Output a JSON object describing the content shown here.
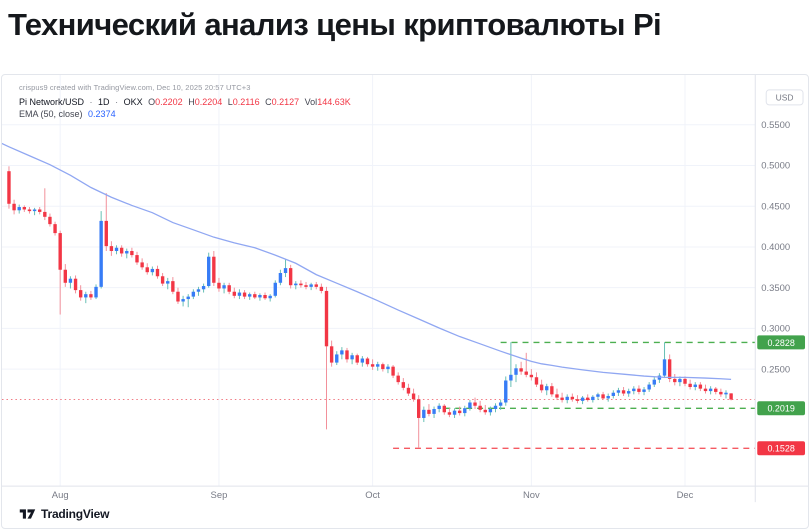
{
  "page": {
    "title": "Технический анализ цены криптовалюты Pi"
  },
  "chart": {
    "attribution": "crispus9 created with TradingView.com, Dec 10, 2025 20:57 UTC+3",
    "legend": {
      "symbol": "Pi Network/USD",
      "separator": "·",
      "interval": "1D",
      "exchange": "OKX",
      "o_label": "O",
      "o": "0.2202",
      "h_label": "H",
      "h": "0.2204",
      "l_label": "L",
      "l": "0.2116",
      "c_label": "C",
      "c": "0.2127",
      "vol_label": "Vol",
      "vol": "144.63K",
      "ema_label": "EMA (50, close)",
      "ema_value": "0.2374"
    },
    "colors": {
      "up_body": "#377cf6",
      "up_wick": "#67bfb4",
      "down_body": "#f23645",
      "down_wick": "#f2909a",
      "ema_line": "#90a7f2",
      "grid": "#f0f3fa",
      "axis_border": "#e0e3eb",
      "axis_text": "#787b86",
      "level_green": "#4caf50",
      "level_red": "#f55a61",
      "badge_green": "#42a24c",
      "badge_red": "#f23645",
      "price_dotted": "#f07b84",
      "badge_text": "#ffffff"
    }
  },
  "footer": {
    "brand": "TradingView"
  },
  "chart_data": {
    "type": "candlestick",
    "title": "Pi Network/USD · 1D · OKX",
    "y_axis": {
      "label": "USD",
      "range": [
        0.145,
        0.565
      ],
      "ticks": [
        {
          "label": "0.5500",
          "value": 0.55
        },
        {
          "label": "0.5000",
          "value": 0.5
        },
        {
          "label": "0.4500",
          "value": 0.45
        },
        {
          "label": "0.4000",
          "value": 0.4
        },
        {
          "label": "0.3500",
          "value": 0.35
        },
        {
          "label": "0.3000",
          "value": 0.3
        },
        {
          "label": "0.2500",
          "value": 0.25
        }
      ]
    },
    "month_ticks": [
      {
        "label": "Aug",
        "index": 10
      },
      {
        "label": "Sep",
        "index": 41
      },
      {
        "label": "Oct",
        "index": 71
      },
      {
        "label": "Nov",
        "index": 102
      },
      {
        "label": "Dec",
        "index": 132
      }
    ],
    "levels": [
      {
        "label": "0.2828",
        "value": 0.2828,
        "role": "resistance",
        "style": "dashed",
        "color": "green",
        "start_index": 96,
        "badge": true
      },
      {
        "label": "0.2019",
        "value": 0.2019,
        "role": "support",
        "style": "dashed",
        "color": "green",
        "start_index": 85,
        "badge": true
      },
      {
        "label": "0.1528",
        "value": 0.1528,
        "role": "support",
        "style": "dashed",
        "color": "red",
        "start_index": 75,
        "badge": true
      },
      {
        "label": "0.2127",
        "value": 0.2127,
        "role": "last-price",
        "style": "dotted",
        "color": "red",
        "start_index": -1.4,
        "badge": false
      }
    ],
    "ema": {
      "name": "EMA (50, close)",
      "last_value": 0.2374,
      "points": [
        [
          -1.4,
          0.527
        ],
        [
          0,
          0.523
        ],
        [
          4,
          0.512
        ],
        [
          8,
          0.501
        ],
        [
          12,
          0.488
        ],
        [
          16,
          0.473
        ],
        [
          20,
          0.461
        ],
        [
          24,
          0.451
        ],
        [
          28,
          0.442
        ],
        [
          32,
          0.43
        ],
        [
          36,
          0.421
        ],
        [
          40,
          0.412
        ],
        [
          44,
          0.405
        ],
        [
          48,
          0.399
        ],
        [
          52,
          0.39
        ],
        [
          56,
          0.38
        ],
        [
          60,
          0.366
        ],
        [
          64,
          0.3555
        ],
        [
          68,
          0.345
        ],
        [
          72,
          0.334
        ],
        [
          76,
          0.3225
        ],
        [
          80,
          0.3115
        ],
        [
          84,
          0.3005
        ],
        [
          88,
          0.29
        ],
        [
          92,
          0.281
        ],
        [
          96,
          0.272
        ],
        [
          100,
          0.2635
        ],
        [
          102,
          0.2595
        ],
        [
          104,
          0.2565
        ],
        [
          106,
          0.2545
        ],
        [
          108,
          0.2525
        ],
        [
          112,
          0.249
        ],
        [
          116,
          0.246
        ],
        [
          120,
          0.2438
        ],
        [
          124,
          0.2415
        ],
        [
          128,
          0.2398
        ],
        [
          132,
          0.2398
        ],
        [
          136,
          0.239
        ],
        [
          139,
          0.2382
        ],
        [
          141,
          0.2374
        ]
      ]
    },
    "candles": [
      [
        0.493,
        0.499,
        0.447,
        0.453
      ],
      [
        0.453,
        0.458,
        0.44,
        0.445
      ],
      [
        0.445,
        0.452,
        0.441,
        0.449
      ],
      [
        0.449,
        0.451,
        0.443,
        0.446
      ],
      [
        0.446,
        0.449,
        0.441,
        0.444
      ],
      [
        0.444,
        0.448,
        0.439,
        0.446
      ],
      [
        0.446,
        0.449,
        0.44,
        0.443
      ],
      [
        0.443,
        0.472,
        0.433,
        0.437
      ],
      [
        0.437,
        0.441,
        0.425,
        0.428
      ],
      [
        0.428,
        0.431,
        0.414,
        0.417
      ],
      [
        0.417,
        0.42,
        0.317,
        0.372
      ],
      [
        0.372,
        0.379,
        0.351,
        0.356
      ],
      [
        0.356,
        0.364,
        0.349,
        0.361
      ],
      [
        0.361,
        0.365,
        0.343,
        0.347
      ],
      [
        0.347,
        0.353,
        0.334,
        0.338
      ],
      [
        0.338,
        0.345,
        0.331,
        0.342
      ],
      [
        0.342,
        0.346,
        0.335,
        0.338
      ],
      [
        0.338,
        0.354,
        0.336,
        0.351
      ],
      [
        0.351,
        0.444,
        0.349,
        0.432
      ],
      [
        0.432,
        0.466,
        0.395,
        0.401
      ],
      [
        0.401,
        0.407,
        0.389,
        0.395
      ],
      [
        0.395,
        0.402,
        0.391,
        0.399
      ],
      [
        0.399,
        0.402,
        0.388,
        0.392
      ],
      [
        0.392,
        0.398,
        0.386,
        0.395
      ],
      [
        0.395,
        0.399,
        0.387,
        0.39
      ],
      [
        0.39,
        0.394,
        0.378,
        0.381
      ],
      [
        0.381,
        0.386,
        0.372,
        0.375
      ],
      [
        0.375,
        0.38,
        0.366,
        0.369
      ],
      [
        0.369,
        0.376,
        0.365,
        0.373
      ],
      [
        0.373,
        0.377,
        0.361,
        0.364
      ],
      [
        0.364,
        0.368,
        0.352,
        0.355
      ],
      [
        0.355,
        0.362,
        0.348,
        0.358
      ],
      [
        0.358,
        0.363,
        0.342,
        0.345
      ],
      [
        0.345,
        0.35,
        0.33,
        0.333
      ],
      [
        0.333,
        0.34,
        0.327,
        0.336
      ],
      [
        0.336,
        0.342,
        0.326,
        0.339
      ],
      [
        0.339,
        0.348,
        0.336,
        0.345
      ],
      [
        0.345,
        0.351,
        0.34,
        0.348
      ],
      [
        0.348,
        0.355,
        0.344,
        0.352
      ],
      [
        0.352,
        0.393,
        0.35,
        0.388
      ],
      [
        0.388,
        0.395,
        0.352,
        0.356
      ],
      [
        0.356,
        0.362,
        0.345,
        0.349
      ],
      [
        0.349,
        0.356,
        0.343,
        0.353
      ],
      [
        0.353,
        0.356,
        0.342,
        0.345
      ],
      [
        0.345,
        0.35,
        0.337,
        0.34
      ],
      [
        0.34,
        0.348,
        0.336,
        0.344
      ],
      [
        0.344,
        0.347,
        0.336,
        0.339
      ],
      [
        0.339,
        0.344,
        0.335,
        0.342
      ],
      [
        0.342,
        0.345,
        0.336,
        0.338
      ],
      [
        0.338,
        0.343,
        0.334,
        0.341
      ],
      [
        0.341,
        0.344,
        0.335,
        0.337
      ],
      [
        0.337,
        0.342,
        0.333,
        0.34
      ],
      [
        0.34,
        0.359,
        0.338,
        0.356
      ],
      [
        0.356,
        0.372,
        0.353,
        0.368
      ],
      [
        0.368,
        0.385,
        0.363,
        0.374
      ],
      [
        0.374,
        0.378,
        0.349,
        0.353
      ],
      [
        0.353,
        0.358,
        0.348,
        0.355
      ],
      [
        0.355,
        0.359,
        0.35,
        0.353
      ],
      [
        0.353,
        0.357,
        0.348,
        0.351
      ],
      [
        0.351,
        0.356,
        0.347,
        0.354
      ],
      [
        0.354,
        0.357,
        0.348,
        0.351
      ],
      [
        0.351,
        0.355,
        0.343,
        0.346
      ],
      [
        0.346,
        0.351,
        0.176,
        0.278
      ],
      [
        0.278,
        0.285,
        0.253,
        0.258
      ],
      [
        0.258,
        0.272,
        0.255,
        0.268
      ],
      [
        0.268,
        0.277,
        0.262,
        0.273
      ],
      [
        0.273,
        0.276,
        0.258,
        0.262
      ],
      [
        0.262,
        0.27,
        0.256,
        0.267
      ],
      [
        0.267,
        0.269,
        0.255,
        0.258
      ],
      [
        0.258,
        0.266,
        0.253,
        0.263
      ],
      [
        0.263,
        0.265,
        0.253,
        0.256
      ],
      [
        0.256,
        0.262,
        0.249,
        0.253
      ],
      [
        0.253,
        0.259,
        0.248,
        0.256
      ],
      [
        0.256,
        0.258,
        0.247,
        0.25
      ],
      [
        0.25,
        0.256,
        0.245,
        0.253
      ],
      [
        0.253,
        0.255,
        0.239,
        0.242
      ],
      [
        0.242,
        0.246,
        0.231,
        0.234
      ],
      [
        0.234,
        0.239,
        0.224,
        0.227
      ],
      [
        0.227,
        0.232,
        0.217,
        0.22
      ],
      [
        0.22,
        0.226,
        0.21,
        0.213
      ],
      [
        0.213,
        0.218,
        0.153,
        0.19
      ],
      [
        0.19,
        0.204,
        0.185,
        0.2
      ],
      [
        0.2,
        0.207,
        0.192,
        0.195
      ],
      [
        0.195,
        0.204,
        0.19,
        0.201
      ],
      [
        0.201,
        0.208,
        0.197,
        0.205
      ],
      [
        0.205,
        0.207,
        0.194,
        0.197
      ],
      [
        0.197,
        0.202,
        0.191,
        0.194
      ],
      [
        0.194,
        0.202,
        0.19,
        0.199
      ],
      [
        0.199,
        0.204,
        0.193,
        0.196
      ],
      [
        0.196,
        0.205,
        0.192,
        0.202
      ],
      [
        0.202,
        0.212,
        0.199,
        0.209
      ],
      [
        0.209,
        0.215,
        0.201,
        0.205
      ],
      [
        0.205,
        0.211,
        0.197,
        0.2
      ],
      [
        0.2,
        0.206,
        0.194,
        0.197
      ],
      [
        0.197,
        0.204,
        0.193,
        0.201
      ],
      [
        0.201,
        0.208,
        0.197,
        0.205
      ],
      [
        0.205,
        0.212,
        0.2,
        0.209
      ],
      [
        0.209,
        0.241,
        0.205,
        0.236
      ],
      [
        0.236,
        0.283,
        0.228,
        0.243
      ],
      [
        0.243,
        0.256,
        0.234,
        0.251
      ],
      [
        0.251,
        0.259,
        0.243,
        0.247
      ],
      [
        0.247,
        0.27,
        0.24,
        0.243
      ],
      [
        0.243,
        0.25,
        0.236,
        0.24
      ],
      [
        0.24,
        0.246,
        0.228,
        0.231
      ],
      [
        0.231,
        0.237,
        0.221,
        0.224
      ],
      [
        0.224,
        0.232,
        0.218,
        0.229
      ],
      [
        0.229,
        0.233,
        0.216,
        0.219
      ],
      [
        0.219,
        0.226,
        0.212,
        0.215
      ],
      [
        0.215,
        0.221,
        0.209,
        0.212
      ],
      [
        0.212,
        0.219,
        0.208,
        0.216
      ],
      [
        0.216,
        0.22,
        0.21,
        0.213
      ],
      [
        0.213,
        0.218,
        0.208,
        0.211
      ],
      [
        0.211,
        0.217,
        0.207,
        0.215
      ],
      [
        0.215,
        0.219,
        0.21,
        0.212
      ],
      [
        0.212,
        0.218,
        0.209,
        0.216
      ],
      [
        0.216,
        0.221,
        0.212,
        0.219
      ],
      [
        0.219,
        0.222,
        0.212,
        0.214
      ],
      [
        0.214,
        0.22,
        0.21,
        0.217
      ],
      [
        0.217,
        0.224,
        0.214,
        0.221
      ],
      [
        0.221,
        0.227,
        0.217,
        0.224
      ],
      [
        0.224,
        0.228,
        0.217,
        0.22
      ],
      [
        0.22,
        0.226,
        0.216,
        0.223
      ],
      [
        0.223,
        0.229,
        0.219,
        0.226
      ],
      [
        0.226,
        0.23,
        0.219,
        0.222
      ],
      [
        0.222,
        0.228,
        0.218,
        0.225
      ],
      [
        0.225,
        0.234,
        0.222,
        0.231
      ],
      [
        0.231,
        0.24,
        0.228,
        0.237
      ],
      [
        0.237,
        0.245,
        0.233,
        0.242
      ],
      [
        0.242,
        0.283,
        0.239,
        0.262
      ],
      [
        0.262,
        0.268,
        0.234,
        0.238
      ],
      [
        0.238,
        0.244,
        0.23,
        0.234
      ],
      [
        0.234,
        0.241,
        0.229,
        0.238
      ],
      [
        0.238,
        0.241,
        0.229,
        0.232
      ],
      [
        0.232,
        0.237,
        0.225,
        0.228
      ],
      [
        0.228,
        0.234,
        0.224,
        0.231
      ],
      [
        0.231,
        0.234,
        0.223,
        0.226
      ],
      [
        0.226,
        0.231,
        0.22,
        0.223
      ],
      [
        0.223,
        0.229,
        0.219,
        0.226
      ],
      [
        0.226,
        0.228,
        0.219,
        0.222
      ],
      [
        0.222,
        0.226,
        0.216,
        0.219
      ],
      [
        0.219,
        0.224,
        0.214,
        0.221
      ],
      [
        0.2202,
        0.2204,
        0.2116,
        0.2127
      ]
    ]
  }
}
